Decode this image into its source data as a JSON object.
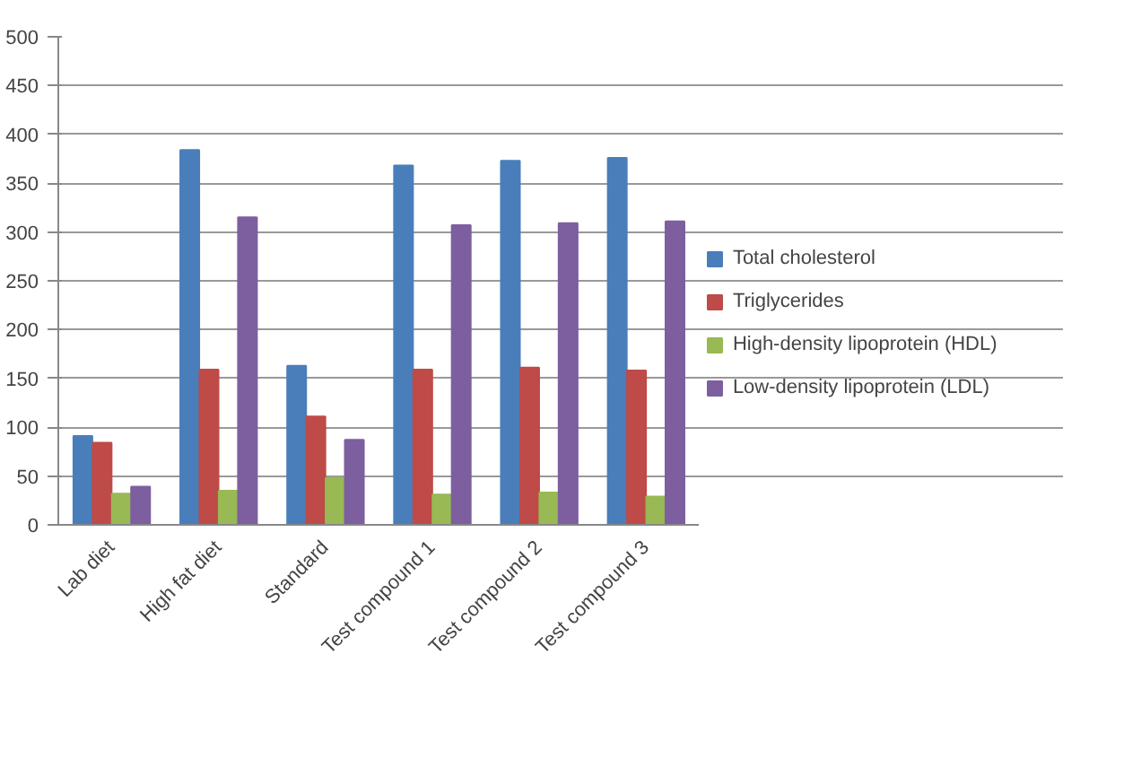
{
  "chart_data": {
    "type": "bar",
    "categories": [
      "Lab diet",
      "High fat diet",
      "Standard",
      "Test compound 1",
      "Test compound 2",
      "Test compound 3"
    ],
    "series": [
      {
        "name": "Total cholesterol",
        "color": "#4a7ebb",
        "values": [
          91,
          384,
          163,
          368,
          373,
          376
        ]
      },
      {
        "name": "Triglycerides",
        "color": "#be4b48",
        "values": [
          84,
          159,
          111,
          159,
          161,
          158
        ]
      },
      {
        "name": "High-density lipoprotein (HDL)",
        "color": "#98b954",
        "values": [
          32,
          35,
          48,
          31,
          33,
          29
        ]
      },
      {
        "name": "Low-density lipoprotein (LDL)",
        "color": "#7d5fa0",
        "values": [
          39,
          315,
          87,
          307,
          309,
          311
        ]
      }
    ],
    "ylim": [
      0,
      500
    ],
    "yticks": [
      0,
      50,
      100,
      150,
      200,
      250,
      300,
      350,
      400,
      450,
      500
    ],
    "grid": "y",
    "legend": "right"
  }
}
